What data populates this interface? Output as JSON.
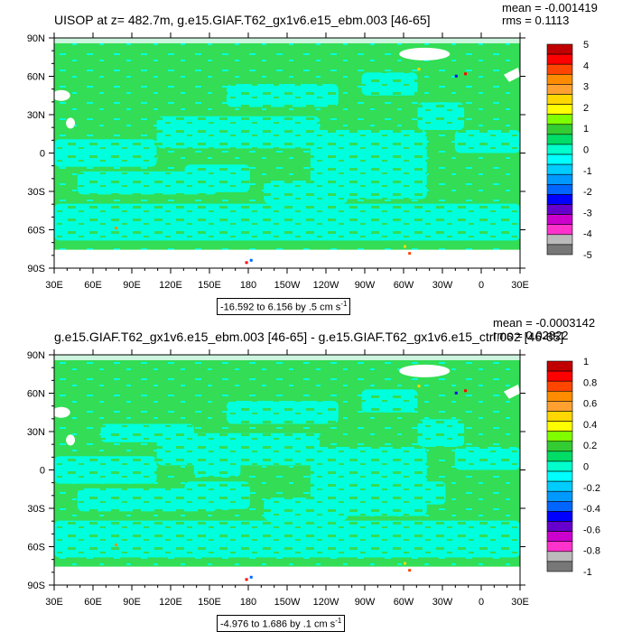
{
  "chart_data": [
    {
      "type": "heatmap",
      "title": "UISOP at z= 482.7m, g.e15.GIAF.T62_gx1v6.e15_ebm.003 [46-65]",
      "stats": {
        "mean": "mean = -0.001419",
        "rms": "rms = 0.1113"
      },
      "range_label_prefix": "-16.592 to 6.156 by .5 cm s",
      "range_label_exp": "-1",
      "x_ticks": [
        "30E",
        "60E",
        "90E",
        "120E",
        "150E",
        "180",
        "150W",
        "120W",
        "90W",
        "60W",
        "30W",
        "0",
        "30E"
      ],
      "y_ticks": [
        "90N",
        "60N",
        "30N",
        "0",
        "30S",
        "60S",
        "90S"
      ],
      "colorbar_levels": [
        "5",
        "4",
        "3",
        "2",
        "1",
        "0",
        "-1",
        "-2",
        "-3",
        "-4",
        "-5"
      ],
      "colorbar_colors": [
        "#c00000",
        "#ff0000",
        "#ff4500",
        "#ff8c00",
        "#ffa030",
        "#ffd700",
        "#ffff00",
        "#7fff00",
        "#33cc33",
        "#00dd66",
        "#00ffcc",
        "#00ffff",
        "#00ccff",
        "#0099ff",
        "#0066ff",
        "#0000ff",
        "#6600cc",
        "#cc00cc",
        "#ff33cc",
        "#bbbbbb",
        "#777777"
      ],
      "field_description": "mostly 0 to 0.5 (green) with large regions -0.5 to 0 (cyan)"
    },
    {
      "type": "heatmap",
      "title": "g.e15.GIAF.T62_gx1v6.e15_ebm.003 [46-65] - g.e15.GIAF.T62_gx1v6.e15_ctrl.002 [46-65]",
      "stats": {
        "mean": "mean = -0.0003142",
        "rms": "rms = 0.02822"
      },
      "range_label_prefix": "-4.976 to 1.686 by .1 cm s",
      "range_label_exp": "-1",
      "x_ticks": [
        "30E",
        "60E",
        "90E",
        "120E",
        "150E",
        "180",
        "150W",
        "120W",
        "90W",
        "60W",
        "30W",
        "0",
        "30E"
      ],
      "y_ticks": [
        "90N",
        "60N",
        "30N",
        "0",
        "30S",
        "60S",
        "90S"
      ],
      "colorbar_levels": [
        "1",
        "0.8",
        "0.6",
        "0.4",
        "0.2",
        "0",
        "-0.2",
        "-0.4",
        "-0.6",
        "-0.8",
        "-1"
      ],
      "colorbar_colors": [
        "#c00000",
        "#ff0000",
        "#ff4500",
        "#ff8c00",
        "#ffa030",
        "#ffd700",
        "#ffff00",
        "#7fff00",
        "#33cc33",
        "#00dd66",
        "#00ffcc",
        "#00ffff",
        "#00ccff",
        "#0099ff",
        "#0066ff",
        "#0000ff",
        "#6600cc",
        "#cc00cc",
        "#ff33cc",
        "#bbbbbb",
        "#777777"
      ],
      "field_description": "mostly 0 to 0.1 (green) with regions -0.1 to 0 (cyan)"
    }
  ],
  "colors": {
    "green": "#33dd55",
    "cyan": "#00ffdd",
    "land": "#ffffff"
  }
}
